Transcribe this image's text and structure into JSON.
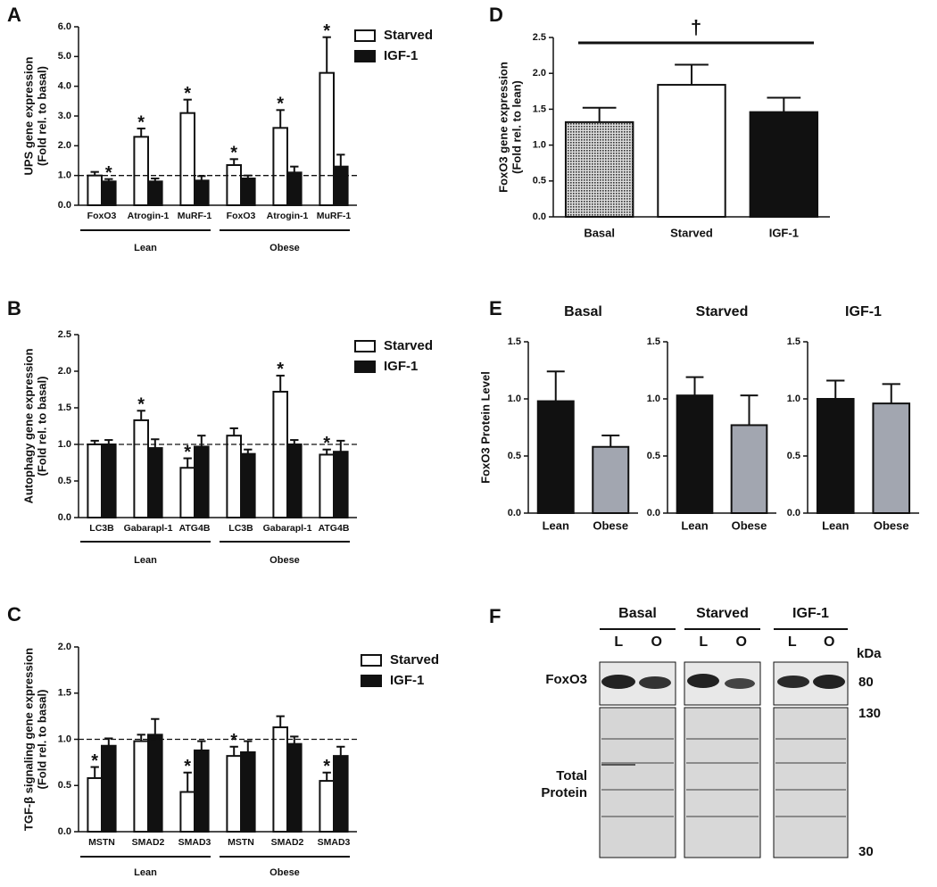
{
  "chart_data": [
    {
      "type": "bar",
      "panel": "A",
      "ylabel": [
        "UPS gene expression",
        "(Fold rel. to basal)"
      ],
      "categories": [
        "FoxO3",
        "Atrogin-1",
        "MuRF-1",
        "FoxO3",
        "Atrogin-1",
        "MuRF-1"
      ],
      "groups": [
        "Lean",
        "Obese"
      ],
      "series": [
        {
          "name": "Starved",
          "color": "#ffffff",
          "values": [
            1.0,
            2.3,
            3.1,
            1.35,
            2.6,
            4.45
          ],
          "errors": [
            0.12,
            0.28,
            0.45,
            0.2,
            0.6,
            1.2
          ],
          "annotations": [
            null,
            "*",
            "*",
            "*",
            "*",
            "*"
          ]
        },
        {
          "name": "IGF-1",
          "color": "#111111",
          "values": [
            0.8,
            0.8,
            0.83,
            0.9,
            1.1,
            1.3
          ],
          "errors": [
            0.08,
            0.1,
            0.15,
            0.1,
            0.2,
            0.4
          ],
          "annotations": [
            "*",
            null,
            null,
            null,
            null,
            null
          ]
        }
      ],
      "reference_line": 1,
      "ylim": [
        0,
        6
      ],
      "yticks": [
        {
          "value": 0,
          "label": "0.0"
        },
        {
          "value": 1,
          "label": "1.0"
        },
        {
          "value": 2,
          "label": "2.0"
        },
        {
          "value": 3,
          "label": "3.0"
        },
        {
          "value": 4,
          "label": "4.0"
        },
        {
          "value": 5,
          "label": "5.0"
        },
        {
          "value": 6,
          "label": "6.0"
        }
      ]
    },
    {
      "type": "bar",
      "panel": "B",
      "ylabel": [
        "Autophagy gene expression",
        "(Fold rel. to basal)"
      ],
      "categories": [
        "LC3B",
        "Gabarapl-1",
        "ATG4B",
        "LC3B",
        "Gabarapl-1",
        "ATG4B"
      ],
      "groups": [
        "Lean",
        "Obese"
      ],
      "series": [
        {
          "name": "Starved",
          "color": "#ffffff",
          "values": [
            1.0,
            1.33,
            0.68,
            1.12,
            1.72,
            0.86
          ],
          "errors": [
            0.05,
            0.13,
            0.13,
            0.1,
            0.22,
            0.07
          ],
          "annotations": [
            null,
            "*",
            "*",
            null,
            "*",
            "*"
          ]
        },
        {
          "name": "IGF-1",
          "color": "#111111",
          "values": [
            1.0,
            0.95,
            0.97,
            0.87,
            1.0,
            0.9
          ],
          "errors": [
            0.06,
            0.12,
            0.15,
            0.06,
            0.06,
            0.15
          ],
          "annotations": [
            null,
            null,
            null,
            null,
            null,
            null
          ]
        }
      ],
      "reference_line": 1,
      "ylim": [
        0,
        2.5
      ],
      "yticks": [
        {
          "value": 0,
          "label": "0.0"
        },
        0.5,
        {
          "value": 1,
          "label": "1.0"
        },
        1.5,
        {
          "value": 2,
          "label": "2.0"
        },
        2.5
      ]
    },
    {
      "type": "bar",
      "panel": "C",
      "ylabel": [
        "TGF-β signaling gene expression",
        "(Fold rel. to basal)"
      ],
      "categories": [
        "MSTN",
        "SMAD2",
        "SMAD3",
        "MSTN",
        "SMAD2",
        "SMAD3"
      ],
      "groups": [
        "Lean",
        "Obese"
      ],
      "series": [
        {
          "name": "Starved",
          "color": "#ffffff",
          "values": [
            0.58,
            0.98,
            0.43,
            0.82,
            1.13,
            0.55
          ],
          "errors": [
            0.12,
            0.07,
            0.21,
            0.1,
            0.12,
            0.09
          ],
          "annotations": [
            "*",
            null,
            "*",
            "*",
            null,
            "*"
          ]
        },
        {
          "name": "IGF-1",
          "color": "#111111",
          "values": [
            0.93,
            1.05,
            0.88,
            0.86,
            0.95,
            0.82
          ],
          "errors": [
            0.08,
            0.17,
            0.1,
            0.12,
            0.08,
            0.1
          ],
          "annotations": [
            null,
            null,
            null,
            null,
            null,
            null
          ]
        }
      ],
      "reference_line": 1,
      "ylim": [
        0,
        2
      ],
      "yticks": [
        {
          "value": 0,
          "label": "0.0"
        },
        0.5,
        {
          "value": 1,
          "label": "1.0"
        },
        1.5,
        {
          "value": 2,
          "label": "2.0"
        }
      ]
    },
    {
      "type": "bar",
      "panel": "D",
      "ylabel": [
        "FoxO3 gene expression",
        "(Fold rel. to lean)"
      ],
      "categories": [
        "Basal",
        "Starved",
        "IGF-1"
      ],
      "values": [
        1.32,
        1.84,
        1.46
      ],
      "errors": [
        0.2,
        0.28,
        0.2
      ],
      "colors": [
        "#9a9a9a",
        "#ffffff",
        "#111111"
      ],
      "bracket_annotation": "†",
      "ylim": [
        0,
        2.5
      ],
      "yticks": [
        {
          "value": 0,
          "label": "0.0"
        },
        0.5,
        {
          "value": 1,
          "label": "1.0"
        },
        1.5,
        {
          "value": 2,
          "label": "2.0"
        },
        2.5
      ]
    },
    {
      "type": "bar",
      "panel": "E",
      "title": "Basal",
      "ylabel": [
        "FoxO3 Protein Level"
      ],
      "categories": [
        "Lean",
        "Obese"
      ],
      "values": [
        0.98,
        0.58
      ],
      "errors": [
        0.26,
        0.1
      ],
      "colors": [
        "#111111",
        "#a2a6b0"
      ],
      "ylim": [
        0,
        1.5
      ],
      "yticks": [
        {
          "value": 0,
          "label": "0.0"
        },
        0.5,
        {
          "value": 1,
          "label": "1.0"
        },
        1.5
      ]
    },
    {
      "type": "bar",
      "title": "Starved",
      "categories": [
        "Lean",
        "Obese"
      ],
      "values": [
        1.03,
        0.77
      ],
      "errors": [
        0.16,
        0.26
      ],
      "colors": [
        "#111111",
        "#a2a6b0"
      ],
      "ylim": [
        0,
        1.5
      ],
      "yticks": [
        {
          "value": 0,
          "label": "0.0"
        },
        0.5,
        {
          "value": 1,
          "label": "1.0"
        },
        1.5
      ]
    },
    {
      "type": "bar",
      "title": "IGF-1",
      "categories": [
        "Lean",
        "Obese"
      ],
      "values": [
        1.0,
        0.96
      ],
      "errors": [
        0.16,
        0.17
      ],
      "colors": [
        "#111111",
        "#a2a6b0"
      ],
      "ylim": [
        0,
        1.5
      ],
      "yticks": [
        {
          "value": 0,
          "label": "0.0"
        },
        0.5,
        {
          "value": 1,
          "label": "1.0"
        },
        1.5
      ]
    }
  ],
  "blot": {
    "panel": "F",
    "conditions": [
      "Basal",
      "Starved",
      "IGF-1"
    ],
    "lanes": [
      "L",
      "O",
      "L",
      "O",
      "L",
      "O"
    ],
    "unit": "kDa",
    "rows": [
      "FoxO3",
      "Total Protein"
    ],
    "markers": [
      "80",
      "130",
      "30"
    ]
  }
}
